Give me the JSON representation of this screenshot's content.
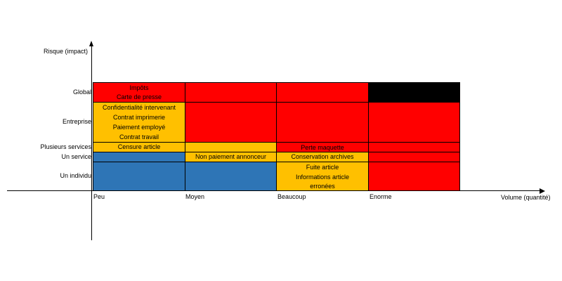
{
  "colors": {
    "high": "#ff0000",
    "critical": "#000000",
    "medium": "#ffc000",
    "low": "#2e75b6"
  },
  "axes": {
    "y_title": "Risque (impact)",
    "x_title": "Volume (quantité)",
    "y_levels": [
      "Global",
      "Entreprise",
      "Plusieurs services",
      "Un service",
      "Un individu"
    ],
    "x_levels": [
      "Peu",
      "Moyen",
      "Beaucoup",
      "Enorme"
    ]
  },
  "cells": {
    "global_peu": [
      "Impôts",
      "Carte de presse"
    ],
    "entreprise_peu": [
      "Confidentialité intervenant",
      "Contrat imprimerie",
      "Paiement employé",
      "Contrat travail"
    ],
    "plusieurs_peu": [
      "Censure article"
    ],
    "plusieurs_beaucoup": [
      "Perte maquette"
    ],
    "service_moyen": [
      "Non paiement annonceur"
    ],
    "service_beaucoup": [
      "Conservation archives"
    ],
    "individu_beaucoup": [
      "Fuite article",
      "Informations article",
      "erronées"
    ]
  }
}
